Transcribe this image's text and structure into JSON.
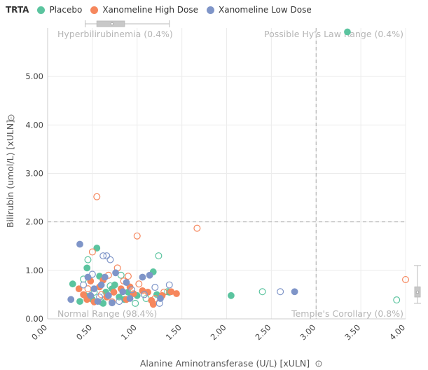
{
  "legend": {
    "title": "TRTA",
    "items": [
      {
        "name": "Placebo",
        "color": "#5bc49f"
      },
      {
        "name": "Xanomeline High Dose",
        "color": "#f6875d"
      },
      {
        "name": "Xanomeline Low Dose",
        "color": "#7f95c8"
      }
    ]
  },
  "chart_data": {
    "type": "scatter",
    "title": "",
    "xlabel": "Alanine Aminotransferase (U/L) [xULN]",
    "ylabel": "Bilirubin (umol/L) [xULN]",
    "xlabel_icon": "info-icon",
    "ylabel_icon": "info-icon",
    "xlim": [
      0,
      4
    ],
    "ylim": [
      0,
      6
    ],
    "x_ticks": [
      "0.00",
      "0.50",
      "1.00",
      "1.50",
      "2.00",
      "2.50",
      "3.00",
      "3.50",
      "4.00"
    ],
    "y_ticks": [
      "0.00",
      "1.00",
      "2.00",
      "3.00",
      "4.00",
      "5.00"
    ],
    "grid": true,
    "legend_position": "top-left",
    "reference_lines": {
      "x": 3,
      "y": 2
    },
    "quadrant_labels": {
      "top_left": "Hyperbilirubinemia (0.4%)",
      "top_right": "Possible Hy's Law Range (0.4%)",
      "bottom_left": "Normal Range (98.4%)",
      "bottom_right": "Temple's Corollary (0.8%)"
    },
    "series": [
      {
        "name": "Placebo",
        "color": "#5bc49f",
        "filled": [
          [
            0.28,
            0.72
          ],
          [
            0.42,
            0.48
          ],
          [
            0.44,
            1.05
          ],
          [
            0.55,
            1.46
          ],
          [
            0.58,
            0.88
          ],
          [
            0.65,
            0.55
          ],
          [
            0.72,
            0.62
          ],
          [
            0.8,
            0.45
          ],
          [
            0.9,
            0.55
          ],
          [
            1.0,
            0.48
          ],
          [
            1.18,
            0.97
          ],
          [
            1.22,
            0.5
          ],
          [
            2.05,
            0.48
          ],
          [
            3.35,
            5.92
          ],
          [
            0.5,
            0.4
          ],
          [
            0.36,
            0.36
          ],
          [
            0.62,
            0.32
          ],
          [
            0.75,
            0.7
          ],
          [
            0.86,
            0.4
          ],
          [
            1.36,
            0.55
          ]
        ],
        "open": [
          [
            0.45,
            1.22
          ],
          [
            0.6,
            0.35
          ],
          [
            0.7,
            0.68
          ],
          [
            0.98,
            0.32
          ],
          [
            1.24,
            1.3
          ],
          [
            1.1,
            0.42
          ],
          [
            0.52,
            0.55
          ],
          [
            2.4,
            0.56
          ],
          [
            3.9,
            0.39
          ],
          [
            1.34,
            0.56
          ],
          [
            0.82,
            0.9
          ],
          [
            0.4,
            0.82
          ]
        ]
      },
      {
        "name": "Xanomeline High Dose",
        "color": "#f6875d",
        "filled": [
          [
            0.35,
            0.62
          ],
          [
            0.4,
            0.5
          ],
          [
            0.48,
            0.78
          ],
          [
            0.52,
            0.35
          ],
          [
            0.58,
            0.66
          ],
          [
            0.66,
            0.45
          ],
          [
            0.74,
            0.55
          ],
          [
            0.82,
            0.62
          ],
          [
            0.88,
            0.4
          ],
          [
            0.96,
            0.52
          ],
          [
            1.06,
            0.58
          ],
          [
            1.16,
            0.38
          ],
          [
            1.28,
            0.48
          ],
          [
            1.44,
            0.52
          ],
          [
            0.44,
            0.4
          ],
          [
            0.62,
            0.8
          ],
          [
            0.92,
            0.66
          ],
          [
            1.12,
            0.55
          ],
          [
            1.38,
            0.56
          ],
          [
            1.18,
            0.3
          ]
        ],
        "open": [
          [
            0.55,
            2.52
          ],
          [
            1.0,
            1.71
          ],
          [
            1.67,
            1.87
          ],
          [
            0.5,
            1.38
          ],
          [
            0.78,
            1.05
          ],
          [
            0.9,
            0.88
          ],
          [
            1.02,
            0.72
          ],
          [
            0.68,
            0.9
          ],
          [
            1.2,
            0.42
          ],
          [
            4.0,
            0.81
          ],
          [
            0.45,
            0.62
          ],
          [
            0.72,
            0.35
          ],
          [
            1.3,
            0.55
          ],
          [
            0.6,
            0.5
          ],
          [
            0.85,
            0.78
          ]
        ]
      },
      {
        "name": "Xanomeline Low Dose",
        "color": "#7f95c8",
        "filled": [
          [
            0.26,
            0.4
          ],
          [
            0.36,
            1.54
          ],
          [
            0.45,
            0.86
          ],
          [
            0.52,
            0.62
          ],
          [
            0.56,
            0.36
          ],
          [
            0.6,
            0.7
          ],
          [
            0.68,
            0.48
          ],
          [
            0.76,
            0.95
          ],
          [
            0.84,
            0.56
          ],
          [
            0.92,
            0.42
          ],
          [
            1.06,
            0.86
          ],
          [
            1.14,
            0.9
          ],
          [
            1.26,
            0.42
          ],
          [
            2.76,
            0.56
          ],
          [
            0.48,
            0.48
          ],
          [
            0.64,
            0.86
          ],
          [
            0.72,
            0.33
          ],
          [
            0.88,
            0.75
          ]
        ],
        "open": [
          [
            0.66,
            1.3
          ],
          [
            0.7,
            1.22
          ],
          [
            0.62,
            1.3
          ],
          [
            0.5,
            0.92
          ],
          [
            0.8,
            0.36
          ],
          [
            1.2,
            0.65
          ],
          [
            1.36,
            0.7
          ],
          [
            1.25,
            0.32
          ],
          [
            2.6,
            0.56
          ],
          [
            0.58,
            0.45
          ],
          [
            0.94,
            0.6
          ],
          [
            0.4,
            0.7
          ],
          [
            1.08,
            0.5
          ]
        ]
      }
    ],
    "marginal_boxplot_x": {
      "min": 0.42,
      "q1": 0.55,
      "median": 0.72,
      "q3": 0.86,
      "max": 1.36
    },
    "marginal_boxplot_y": {
      "min": 0.32,
      "q1": 0.45,
      "median": 0.55,
      "q3": 0.66,
      "max": 1.1
    }
  }
}
